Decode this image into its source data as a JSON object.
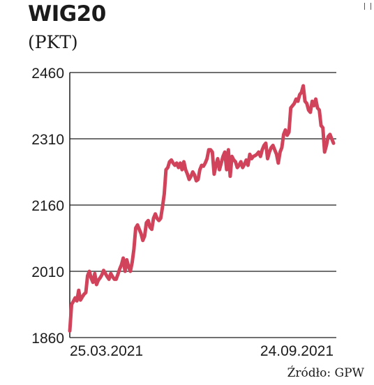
{
  "chart_data": {
    "type": "line",
    "title": "WIG20",
    "subtitle": "(PKT)",
    "source": "Źródło: GPW",
    "xlabel": "",
    "ylabel": "",
    "ylim": [
      1860,
      2460
    ],
    "yticks": [
      1860,
      2010,
      2160,
      2310,
      2460
    ],
    "ytick_labels": [
      "1860",
      "2010",
      "2160",
      "2310",
      "2460"
    ],
    "x_start_label": "25.03.2021",
    "x_end_label": "24.09.2021",
    "grid": true,
    "color": "#d1435b",
    "series": [
      {
        "values": [
          1875,
          1935,
          1942,
          1950,
          1943,
          1967,
          1945,
          1952,
          1958,
          1962,
          2000,
          2010,
          1995,
          1985,
          2005,
          1980,
          1990,
          1995,
          2002,
          2012,
          2005,
          1998,
          1992,
          2005,
          1998,
          1992,
          1992,
          2003,
          2015,
          2025,
          2040,
          2010,
          2036,
          2020,
          2010,
          2030,
          2060,
          2108,
          2115,
          2105,
          2095,
          2080,
          2090,
          2120,
          2125,
          2110,
          2105,
          2130,
          2140,
          2130,
          2125,
          2130,
          2155,
          2185,
          2240,
          2245,
          2258,
          2262,
          2255,
          2250,
          2255,
          2245,
          2255,
          2240,
          2258,
          2240,
          2230,
          2218,
          2225,
          2235,
          2228,
          2215,
          2218,
          2240,
          2250,
          2248,
          2255,
          2265,
          2285,
          2285,
          2280,
          2230,
          2250,
          2265,
          2240,
          2255,
          2270,
          2280,
          2240,
          2285,
          2225,
          2270,
          2262,
          2258,
          2245,
          2250,
          2258,
          2245,
          2252,
          2262,
          2250,
          2275,
          2265,
          2270,
          2272,
          2275,
          2280,
          2270,
          2285,
          2295,
          2300,
          2265,
          2280,
          2290,
          2295,
          2285,
          2275,
          2255,
          2280,
          2290,
          2320,
          2330,
          2318,
          2325,
          2380,
          2385,
          2390,
          2400,
          2395,
          2410,
          2415,
          2430,
          2395,
          2390,
          2375,
          2370,
          2395,
          2385,
          2400,
          2380,
          2375,
          2340,
          2335,
          2280,
          2295,
          2315,
          2320,
          2310,
          2300
        ]
      }
    ]
  }
}
